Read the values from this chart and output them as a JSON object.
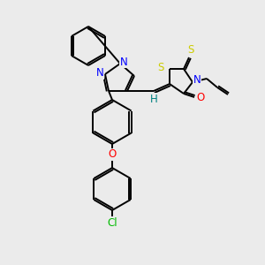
{
  "background_color": "#ebebeb",
  "bond_color": "#000000",
  "atom_colors": {
    "N": "#0000ff",
    "O": "#ff0000",
    "S": "#cccc00",
    "Cl": "#00bb00",
    "H": "#008080",
    "C": "#000000"
  },
  "font_size": 8.5,
  "lw": 1.4,
  "figsize": [
    3.0,
    3.0
  ],
  "dpi": 100
}
